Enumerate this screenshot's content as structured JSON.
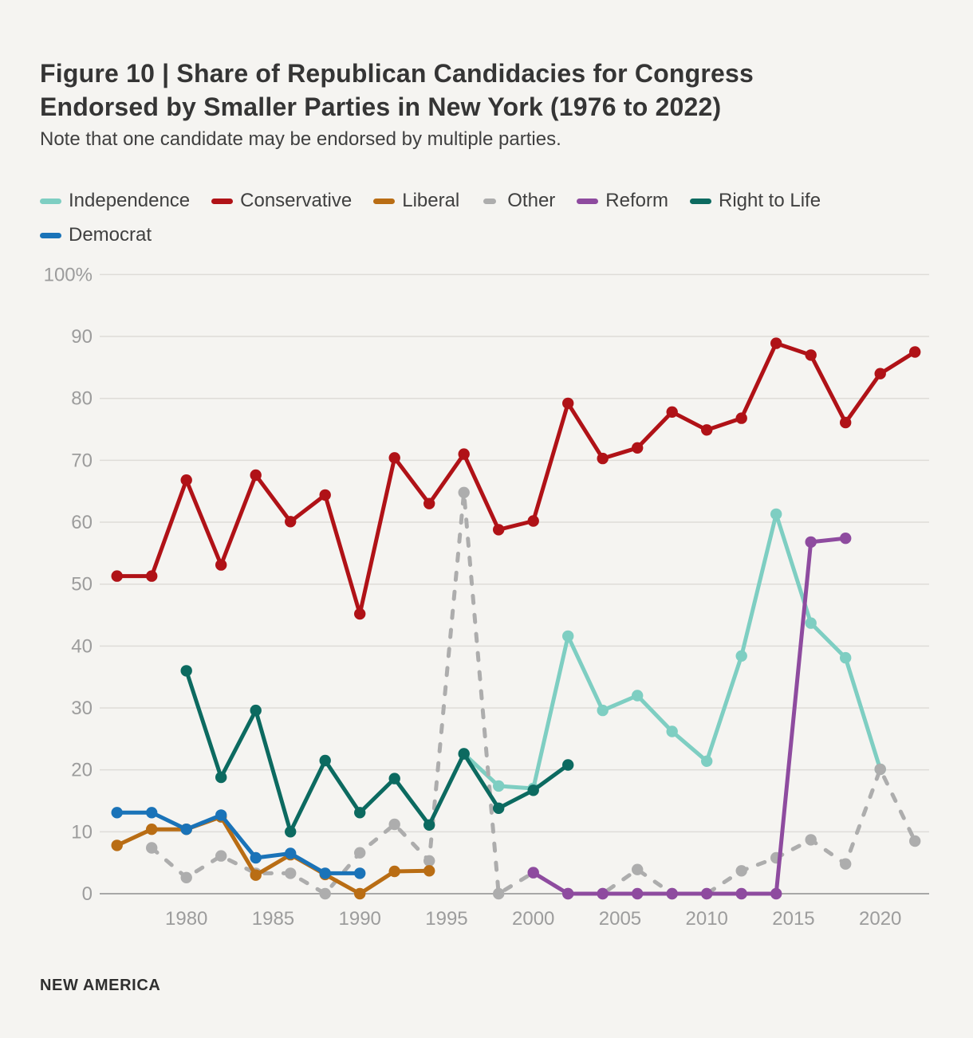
{
  "page": {
    "title_line1": "Figure 10 | Share of Republican Candidacies for Congress",
    "title_line2": "Endorsed by Smaller Parties in New York (1976 to 2022)",
    "subtitle": "Note that one candidate may be endorsed by multiple parties.",
    "footer": "NEW AMERICA",
    "background": "#f5f4f1"
  },
  "colors": {
    "independence": "#7ecec2",
    "conservative": "#b01217",
    "liberal": "#b96d14",
    "other": "#adadad",
    "reform": "#8e4b9f",
    "right_to_life": "#0c6a60",
    "democrat": "#1a73b8",
    "gridline": "#dedcd8",
    "zero_line": "#a7a7a7",
    "tick_text": "#9c9c9c"
  },
  "legend": {
    "items": [
      {
        "label": "Independence",
        "color": "#7ecec2",
        "dashed": false,
        "row": 1
      },
      {
        "label": "Conservative",
        "color": "#b01217",
        "dashed": false,
        "row": 1
      },
      {
        "label": "Liberal",
        "color": "#b96d14",
        "dashed": false,
        "row": 1
      },
      {
        "label": "Other",
        "color": "#adadad",
        "dashed": true,
        "row": 1
      },
      {
        "label": "Reform",
        "color": "#8e4b9f",
        "dashed": false,
        "row": 1
      },
      {
        "label": "Right to Life",
        "color": "#0c6a60",
        "dashed": false,
        "row": 1
      },
      {
        "label": "Democrat",
        "color": "#1a73b8",
        "dashed": false,
        "row": 2
      }
    ]
  },
  "chart_data": {
    "type": "line",
    "title": "Figure 10 | Share of Republican Candidacies for Congress Endorsed by Smaller Parties in New York (1976 to 2022)",
    "note": "Note that one candidate may be endorsed by multiple parties.",
    "xlim": [
      1975,
      2023
    ],
    "ylim": [
      0,
      100
    ],
    "grid": true,
    "legend_position": "top",
    "x_ticks": [
      {
        "value": 1980,
        "label": "1980"
      },
      {
        "value": 1985,
        "label": "1985"
      },
      {
        "value": 1990,
        "label": "1990"
      },
      {
        "value": 1995,
        "label": "1995"
      },
      {
        "value": 2000,
        "label": "2000"
      },
      {
        "value": 2005,
        "label": "2005"
      },
      {
        "value": 2010,
        "label": "2010"
      },
      {
        "value": 2015,
        "label": "2015"
      },
      {
        "value": 2020,
        "label": "2020"
      }
    ],
    "y_ticks": [
      {
        "value": 100,
        "label": "100%"
      },
      {
        "value": 90,
        "label": "90"
      },
      {
        "value": 80,
        "label": "80"
      },
      {
        "value": 70,
        "label": "70"
      },
      {
        "value": 60,
        "label": "60"
      },
      {
        "value": 50,
        "label": "50"
      },
      {
        "value": 40,
        "label": "40"
      },
      {
        "value": 30,
        "label": "30"
      },
      {
        "value": 20,
        "label": "20"
      },
      {
        "value": 10,
        "label": "10"
      },
      {
        "value": 0,
        "label": "0"
      }
    ],
    "series": [
      {
        "name": "Independence",
        "color": "#7ecec2",
        "dashed": false,
        "points": [
          [
            1996,
            22.6
          ],
          [
            1998,
            17.4
          ],
          [
            2000,
            17.0
          ],
          [
            2002,
            41.6
          ],
          [
            2004,
            29.6
          ],
          [
            2006,
            32.0
          ],
          [
            2008,
            26.2
          ],
          [
            2010,
            21.4
          ],
          [
            2012,
            38.4
          ],
          [
            2014,
            61.3
          ],
          [
            2016,
            43.7
          ],
          [
            2018,
            38.1
          ],
          [
            2020,
            20.1
          ]
        ]
      },
      {
        "name": "Other",
        "color": "#adadad",
        "dashed": true,
        "points": [
          [
            1978,
            7.4
          ],
          [
            1980,
            2.6
          ],
          [
            1982,
            6.1
          ],
          [
            1984,
            3.3
          ],
          [
            1986,
            3.3
          ],
          [
            1988,
            0
          ],
          [
            1990,
            6.6
          ],
          [
            1992,
            11.2
          ],
          [
            1994,
            5.3
          ],
          [
            1996,
            64.8
          ],
          [
            1998,
            0
          ],
          [
            2000,
            3.4
          ],
          [
            2002,
            0
          ],
          [
            2004,
            0
          ],
          [
            2006,
            3.9
          ],
          [
            2008,
            0
          ],
          [
            2010,
            0
          ],
          [
            2012,
            3.7
          ],
          [
            2014,
            5.8
          ],
          [
            2016,
            8.7
          ],
          [
            2018,
            4.8
          ],
          [
            2020,
            20.1
          ],
          [
            2022,
            8.5
          ]
        ]
      },
      {
        "name": "Conservative",
        "color": "#b01217",
        "dashed": false,
        "points": [
          [
            1976,
            51.3
          ],
          [
            1978,
            51.3
          ],
          [
            1980,
            66.8
          ],
          [
            1982,
            53.1
          ],
          [
            1984,
            67.6
          ],
          [
            1986,
            60.1
          ],
          [
            1988,
            64.4
          ],
          [
            1990,
            45.2
          ],
          [
            1992,
            70.4
          ],
          [
            1994,
            63.0
          ],
          [
            1996,
            71.0
          ],
          [
            1998,
            58.8
          ],
          [
            2000,
            60.2
          ],
          [
            2002,
            79.2
          ],
          [
            2004,
            70.3
          ],
          [
            2006,
            72.0
          ],
          [
            2008,
            77.8
          ],
          [
            2010,
            74.9
          ],
          [
            2012,
            76.8
          ],
          [
            2014,
            88.9
          ],
          [
            2016,
            87.0
          ],
          [
            2018,
            76.1
          ],
          [
            2020,
            84.0
          ],
          [
            2022,
            87.5
          ]
        ]
      },
      {
        "name": "Liberal",
        "color": "#b96d14",
        "dashed": false,
        "points": [
          [
            1976,
            7.8
          ],
          [
            1978,
            10.4
          ],
          [
            1980,
            10.4
          ],
          [
            1982,
            12.4
          ],
          [
            1984,
            3.0
          ],
          [
            1986,
            6.3
          ],
          [
            1988,
            3.1
          ],
          [
            1990,
            0
          ],
          [
            1992,
            3.6
          ],
          [
            1994,
            3.7
          ]
        ]
      },
      {
        "name": "Reform",
        "color": "#8e4b9f",
        "dashed": false,
        "points": [
          [
            2000,
            3.4
          ],
          [
            2002,
            0
          ],
          [
            2004,
            0
          ],
          [
            2006,
            0
          ],
          [
            2008,
            0
          ],
          [
            2010,
            0
          ],
          [
            2012,
            0
          ],
          [
            2014,
            0
          ],
          [
            2016,
            56.8
          ],
          [
            2018,
            57.4
          ]
        ]
      },
      {
        "name": "Right to Life",
        "color": "#0c6a60",
        "dashed": false,
        "points": [
          [
            1980,
            36.0
          ],
          [
            1982,
            18.8
          ],
          [
            1984,
            29.6
          ],
          [
            1986,
            10.0
          ],
          [
            1988,
            21.5
          ],
          [
            1990,
            13.1
          ],
          [
            1992,
            18.6
          ],
          [
            1994,
            11.1
          ],
          [
            1996,
            22.6
          ],
          [
            1998,
            13.8
          ],
          [
            2000,
            16.7
          ],
          [
            2002,
            20.8
          ]
        ]
      },
      {
        "name": "Democrat",
        "color": "#1a73b8",
        "dashed": false,
        "points": [
          [
            1976,
            13.1
          ],
          [
            1978,
            13.1
          ],
          [
            1980,
            10.4
          ],
          [
            1982,
            12.7
          ],
          [
            1984,
            5.8
          ],
          [
            1986,
            6.5
          ],
          [
            1988,
            3.3
          ],
          [
            1990,
            3.3
          ]
        ]
      }
    ]
  }
}
